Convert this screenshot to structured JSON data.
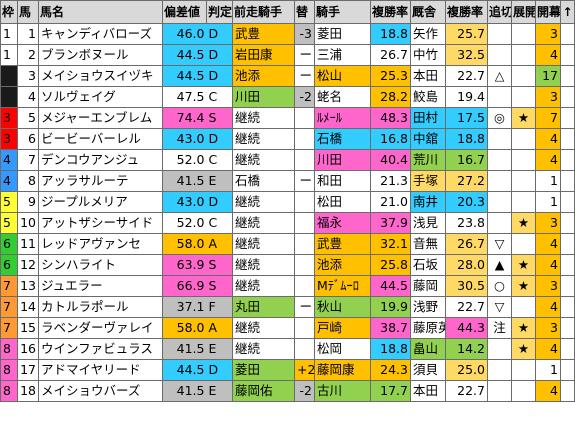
{
  "headers": [
    "枠",
    "馬",
    "馬名",
    "偏差値",
    "判定",
    "前走騎手",
    "替",
    "騎手",
    "複勝率",
    "厩舎",
    "複勝率",
    "追切",
    "展開",
    "開幕",
    "↑"
  ],
  "colors": {
    "header_bg": "#d9d9d9",
    "gate": [
      "#ffffff",
      "#1a1a1a",
      "#ff0000",
      "#3399ff",
      "#ffff33",
      "#33cc33",
      "#ff9933",
      "#ff66cc"
    ],
    "hensachi_blue": "#33ccff",
    "hensachi_orange": "#ffc000",
    "hensachi_gray": "#c0c0c0",
    "green": "#92d050",
    "gray": "#bfbfbf",
    "orange": "#ffc000",
    "pink": "#ff66cc",
    "blue": "#33ccff",
    "lightorange": "#ffd966"
  },
  "rows": [
    {
      "waku": "1",
      "num": "1",
      "name": "キャンディバローズ",
      "hensa": "46.0",
      "hantei": "D",
      "hcol": "blue",
      "zenso": "武豊",
      "zcol": "orange",
      "kae": "-3",
      "kcol": "gray",
      "kishu": "菱田",
      "kishucol": "",
      "jrate": "18.8",
      "jcol": "blue",
      "kyusha": "矢作",
      "kyucol": "",
      "trate": "25.7",
      "tcol": "lightorange",
      "oi": "",
      "ten": "",
      "kai": "3",
      "kaicol": "orange"
    },
    {
      "waku": "1",
      "num": "2",
      "name": "ブランボヌール",
      "hensa": "44.5",
      "hantei": "D",
      "hcol": "blue",
      "zenso": "岩田康",
      "zcol": "orange",
      "kae": "ー",
      "kcol": "",
      "kishu": "三浦",
      "kishucol": "",
      "jrate": "26.7",
      "jcol": "",
      "kyusha": "中竹",
      "kyucol": "",
      "trate": "32.5",
      "tcol": "lightorange",
      "oi": "",
      "ten": "",
      "kai": "4",
      "kaicol": "orange"
    },
    {
      "waku": "2",
      "num": "3",
      "name": "メイショウスイヅキ",
      "hensa": "44.5",
      "hantei": "D",
      "hcol": "blue",
      "zenso": "池添",
      "zcol": "orange",
      "kae": "ー",
      "kcol": "",
      "kishu": "松山",
      "kishucol": "orange",
      "jrate": "25.3",
      "jcol": "orange",
      "kyusha": "本田",
      "kyucol": "",
      "trate": "22.7",
      "tcol": "",
      "oi": "△",
      "ten": "",
      "kai": "17",
      "kaicol": "green"
    },
    {
      "waku": "2",
      "num": "4",
      "name": "ソルヴェイグ",
      "hensa": "47.5",
      "hantei": "C",
      "hcol": "",
      "zenso": "川田",
      "zcol": "green",
      "kae": "-2",
      "kcol": "gray",
      "kishu": "蛯名",
      "kishucol": "",
      "jrate": "28.2",
      "jcol": "orange",
      "kyusha": "鮫島",
      "kyucol": "",
      "trate": "19.4",
      "tcol": "",
      "oi": "",
      "ten": "",
      "kai": "3",
      "kaicol": "orange"
    },
    {
      "waku": "3",
      "num": "5",
      "name": "メジャーエンブレム",
      "hensa": "74.4",
      "hantei": "S",
      "hcol": "pink",
      "zenso": "継続",
      "zcol": "",
      "kae": "",
      "kcol": "",
      "kishu": "ﾙﾒｰﾙ",
      "kishucol": "pink",
      "jrate": "48.3",
      "jcol": "pink",
      "kyusha": "田村",
      "kyucol": "blue",
      "trate": "17.5",
      "tcol": "blue",
      "oi": "◎",
      "ten": "★",
      "kai": "7",
      "kaicol": "orange"
    },
    {
      "waku": "3",
      "num": "6",
      "name": "ビービーバーレル",
      "hensa": "43.0",
      "hantei": "D",
      "hcol": "blue",
      "zenso": "継続",
      "zcol": "",
      "kae": "",
      "kcol": "",
      "kishu": "石橋",
      "kishucol": "blue",
      "jrate": "16.8",
      "jcol": "blue",
      "kyusha": "中舘",
      "kyucol": "blue",
      "trate": "18.8",
      "tcol": "blue",
      "oi": "",
      "ten": "",
      "kai": "4",
      "kaicol": "orange"
    },
    {
      "waku": "4",
      "num": "7",
      "name": "デンコウアンジュ",
      "hensa": "52.0",
      "hantei": "C",
      "hcol": "",
      "zenso": "継続",
      "zcol": "",
      "kae": "",
      "kcol": "",
      "kishu": "川田",
      "kishucol": "pink",
      "jrate": "40.4",
      "jcol": "pink",
      "kyusha": "荒川",
      "kyucol": "green",
      "trate": "16.7",
      "tcol": "green",
      "oi": "",
      "ten": "",
      "kai": "4",
      "kaicol": "orange"
    },
    {
      "waku": "4",
      "num": "8",
      "name": "アッラサルーテ",
      "hensa": "41.5",
      "hantei": "E",
      "hcol": "gray",
      "zenso": "石橋",
      "zcol": "",
      "kae": "ー",
      "kcol": "",
      "kishu": "和田",
      "kishucol": "",
      "jrate": "21.3",
      "jcol": "",
      "kyusha": "手塚",
      "kyucol": "lightorange",
      "trate": "27.2",
      "tcol": "lightorange",
      "oi": "",
      "ten": "",
      "kai": "1",
      "kaicol": ""
    },
    {
      "waku": "5",
      "num": "9",
      "name": "ジープルメリア",
      "hensa": "43.0",
      "hantei": "D",
      "hcol": "blue",
      "zenso": "継続",
      "zcol": "",
      "kae": "",
      "kcol": "",
      "kishu": "松田",
      "kishucol": "",
      "jrate": "21.0",
      "jcol": "",
      "kyusha": "南井",
      "kyucol": "blue",
      "trate": "20.3",
      "tcol": "blue",
      "oi": "",
      "ten": "",
      "kai": "1",
      "kaicol": ""
    },
    {
      "waku": "5",
      "num": "10",
      "name": "アットザシーサイド",
      "hensa": "52.0",
      "hantei": "C",
      "hcol": "",
      "zenso": "継続",
      "zcol": "",
      "kae": "",
      "kcol": "",
      "kishu": "福永",
      "kishucol": "pink",
      "jrate": "37.9",
      "jcol": "pink",
      "kyusha": "浅見",
      "kyucol": "",
      "trate": "23.8",
      "tcol": "",
      "oi": "",
      "ten": "★",
      "kai": "3",
      "kaicol": "orange"
    },
    {
      "waku": "6",
      "num": "11",
      "name": "レッドアヴァンセ",
      "hensa": "58.0",
      "hantei": "A",
      "hcol": "orange",
      "zenso": "継続",
      "zcol": "",
      "kae": "",
      "kcol": "",
      "kishu": "武豊",
      "kishucol": "orange",
      "jrate": "32.1",
      "jcol": "orange",
      "kyusha": "音無",
      "kyucol": "",
      "trate": "26.7",
      "tcol": "lightorange",
      "oi": "▽",
      "ten": "",
      "kai": "4",
      "kaicol": "orange"
    },
    {
      "waku": "6",
      "num": "12",
      "name": "シンハライト",
      "hensa": "63.9",
      "hantei": "S",
      "hcol": "pink",
      "zenso": "継続",
      "zcol": "",
      "kae": "",
      "kcol": "",
      "kishu": "池添",
      "kishucol": "orange",
      "jrate": "25.8",
      "jcol": "orange",
      "kyusha": "石坂",
      "kyucol": "",
      "trate": "28.0",
      "tcol": "lightorange",
      "oi": "▲",
      "ten": "★",
      "kai": "4",
      "kaicol": "orange"
    },
    {
      "waku": "7",
      "num": "13",
      "name": "ジュエラー",
      "hensa": "66.9",
      "hantei": "S",
      "hcol": "pink",
      "zenso": "継続",
      "zcol": "",
      "kae": "",
      "kcol": "",
      "kishu": "Mﾃﾞﾑｰﾛ",
      "kishucol": "orange",
      "jrate": "44.5",
      "jcol": "pink",
      "kyusha": "藤岡",
      "kyucol": "",
      "trate": "30.5",
      "tcol": "lightorange",
      "oi": "○",
      "ten": "★",
      "kai": "3",
      "kaicol": "orange"
    },
    {
      "waku": "7",
      "num": "14",
      "name": "カトルラポール",
      "hensa": "37.1",
      "hantei": "F",
      "hcol": "gray",
      "zenso": "丸田",
      "zcol": "green",
      "kae": "ー",
      "kcol": "",
      "kishu": "秋山",
      "kishucol": "green",
      "jrate": "19.9",
      "jcol": "green",
      "kyusha": "浅野",
      "kyucol": "",
      "trate": "22.7",
      "tcol": "",
      "oi": "▽",
      "ten": "",
      "kai": "4",
      "kaicol": "orange"
    },
    {
      "waku": "7",
      "num": "15",
      "name": "ラベンダーヴァレイ",
      "hensa": "58.0",
      "hantei": "A",
      "hcol": "orange",
      "zenso": "継続",
      "zcol": "",
      "kae": "",
      "kcol": "",
      "kishu": "戸崎",
      "kishucol": "orange",
      "jrate": "38.7",
      "jcol": "pink",
      "kyusha": "藤原英",
      "kyucol": "",
      "trate": "44.3",
      "tcol": "pink",
      "oi": "注",
      "ten": "★",
      "kai": "3",
      "kaicol": "orange"
    },
    {
      "waku": "8",
      "num": "16",
      "name": "ウインファビュラス",
      "hensa": "41.5",
      "hantei": "E",
      "hcol": "gray",
      "zenso": "継続",
      "zcol": "",
      "kae": "",
      "kcol": "",
      "kishu": "松岡",
      "kishucol": "",
      "jrate": "18.8",
      "jcol": "blue",
      "kyusha": "畠山",
      "kyucol": "green",
      "trate": "14.2",
      "tcol": "green",
      "oi": "",
      "ten": "★",
      "kai": "4",
      "kaicol": "orange"
    },
    {
      "waku": "8",
      "num": "17",
      "name": "アドマイヤリード",
      "hensa": "44.5",
      "hantei": "D",
      "hcol": "blue",
      "zenso": "菱田",
      "zcol": "green",
      "kae": "+2",
      "kcol": "orange",
      "kishu": "藤岡康",
      "kishucol": "orange",
      "jrate": "24.3",
      "jcol": "orange",
      "kyusha": "須貝",
      "kyucol": "",
      "trate": "25.0",
      "tcol": "lightorange",
      "oi": "",
      "ten": "",
      "kai": "1",
      "kaicol": ""
    },
    {
      "waku": "8",
      "num": "18",
      "name": "メイショウバーズ",
      "hensa": "41.5",
      "hantei": "E",
      "hcol": "gray",
      "zenso": "藤岡佑",
      "zcol": "green",
      "kae": "-2",
      "kcol": "gray",
      "kishu": "古川",
      "kishucol": "green",
      "jrate": "17.7",
      "jcol": "green",
      "kyusha": "本田",
      "kyucol": "",
      "trate": "22.7",
      "tcol": "",
      "oi": "",
      "ten": "",
      "kai": "4",
      "kaicol": "orange"
    }
  ]
}
